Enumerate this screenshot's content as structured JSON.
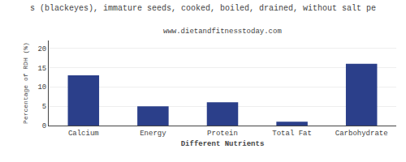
{
  "chart_data": {
    "type": "bar",
    "title": "s (blackeyes), immature seeds, cooked, boiled, drained, without salt pe",
    "subtitle": "www.dietandfitnesstoday.com",
    "xlabel": "Different Nutrients",
    "ylabel": "Percentage of RDH (%)",
    "categories": [
      "Calcium",
      "Energy",
      "Protein",
      "Total Fat",
      "Carbohydrate"
    ],
    "values": [
      13,
      5,
      6,
      1,
      16
    ],
    "color": "#2b3f8a",
    "ylim": [
      0,
      22
    ],
    "yticks": [
      0,
      5,
      10,
      15,
      20
    ],
    "grid": true
  }
}
